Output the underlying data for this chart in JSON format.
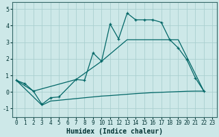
{
  "xlabel": "Humidex (Indice chaleur)",
  "xlim": [
    -0.5,
    23.5
  ],
  "ylim": [
    -1.5,
    5.4
  ],
  "xticks": [
    0,
    1,
    2,
    3,
    4,
    5,
    6,
    7,
    8,
    9,
    10,
    11,
    12,
    13,
    14,
    15,
    16,
    17,
    18,
    19,
    20,
    21,
    22,
    23
  ],
  "yticks": [
    -1,
    0,
    1,
    2,
    3,
    4,
    5
  ],
  "background_color": "#cde8e8",
  "grid_color": "#aacfcf",
  "line_color": "#006666",
  "line1_x": [
    0,
    1,
    2,
    3,
    4,
    5,
    7,
    8,
    9,
    10,
    11,
    12,
    13,
    14,
    15,
    16,
    17,
    18,
    19,
    20,
    21,
    22
  ],
  "line1_y": [
    0.7,
    0.5,
    0.05,
    -0.75,
    -0.35,
    -0.3,
    0.75,
    0.7,
    2.35,
    1.85,
    4.1,
    3.2,
    4.75,
    4.35,
    4.35,
    4.35,
    4.2,
    3.15,
    2.65,
    1.95,
    0.85,
    0.05
  ],
  "line2_x": [
    0,
    2,
    7,
    10,
    13,
    19,
    22
  ],
  "line2_y": [
    0.7,
    0.05,
    0.75,
    1.85,
    3.15,
    3.15,
    0.05
  ],
  "line3_x": [
    0,
    3,
    4,
    5,
    6,
    7,
    8,
    9,
    10,
    11,
    12,
    13,
    14,
    15,
    16,
    17,
    18,
    19,
    20,
    21,
    22
  ],
  "line3_y": [
    0.7,
    -0.8,
    -0.55,
    -0.5,
    -0.45,
    -0.4,
    -0.35,
    -0.3,
    -0.25,
    -0.22,
    -0.18,
    -0.14,
    -0.1,
    -0.07,
    -0.04,
    -0.02,
    0.0,
    0.02,
    0.04,
    0.05,
    0.05
  ]
}
